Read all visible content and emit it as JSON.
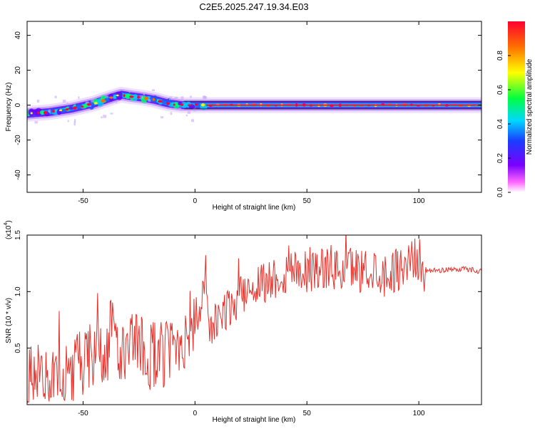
{
  "title": "C2E5.2025.247.19.34.E03",
  "spectrogram": {
    "type": "heatmap",
    "xlabel": "Height of straight line (km)",
    "ylabel": "Frequency (Hz)",
    "xlim": [
      -75,
      128
    ],
    "ylim": [
      -50,
      48
    ],
    "xticks": [
      -50,
      0,
      50,
      100
    ],
    "yticks": [
      40,
      20,
      0,
      -20,
      -40
    ],
    "ridge_x": [
      -75,
      -65,
      -55,
      -45,
      -38,
      -33,
      -28,
      -22,
      -18,
      -12,
      -6,
      0,
      10,
      128
    ],
    "ridge_y": [
      -5,
      -4,
      -2,
      1,
      4,
      6,
      5,
      4,
      3,
      1,
      0,
      0,
      0,
      0
    ],
    "colors": [
      "#6a00ff",
      "#2a4cff",
      "#00c8ff",
      "#00ff70",
      "#ffee00",
      "#ff6a00",
      "#ff0040"
    ]
  },
  "colorbar": {
    "label": "Normalized spectral amplitude",
    "ticks": [
      "0.0",
      "0.2",
      "0.4",
      "0.6",
      "0.8"
    ],
    "tick_values": [
      0.0,
      0.2,
      0.4,
      0.6,
      0.8
    ],
    "range": [
      0,
      1
    ]
  },
  "chart_data": {
    "type": "line",
    "title": "C2E5.2025.247.19.34.E03",
    "xlabel": "Height of straight line (km)",
    "ylabel": "SNR (10 * v/v)",
    "scale_label": "(x10",
    "scale_exp": "4",
    "xlim": [
      -75,
      128
    ],
    "ylim": [
      0,
      1.5
    ],
    "xticks": [
      -50,
      0,
      50,
      100
    ],
    "yticks": [
      "0.5",
      "1.0",
      "1.5"
    ],
    "ytick_values": [
      0.5,
      1.0,
      1.5
    ],
    "color": "#e8302a",
    "series": [
      {
        "name": "SNR",
        "x": [
          -75,
          -72,
          -68,
          -64,
          -60,
          -55,
          -50,
          -45,
          -40,
          -37,
          -35,
          -30,
          -25,
          -20,
          -15,
          -10,
          -5,
          0,
          3,
          5,
          6,
          10,
          15,
          20,
          25,
          30,
          35,
          40,
          45,
          50,
          55,
          60,
          65,
          70,
          75,
          80,
          85,
          90,
          95,
          98,
          100,
          102,
          105,
          110,
          115,
          120,
          125,
          128
        ],
        "y": [
          0.12,
          0.3,
          0.22,
          0.18,
          0.22,
          0.28,
          0.35,
          0.45,
          0.4,
          0.7,
          0.5,
          0.45,
          0.5,
          0.45,
          0.42,
          0.5,
          0.6,
          0.78,
          0.85,
          1.22,
          0.6,
          0.75,
          0.85,
          0.95,
          1.05,
          1.08,
          1.12,
          1.15,
          1.22,
          1.18,
          1.2,
          1.22,
          1.18,
          1.22,
          1.18,
          1.2,
          1.15,
          1.2,
          1.25,
          1.3,
          1.28,
          1.2,
          1.18,
          1.19,
          1.2,
          1.2,
          1.19,
          1.18
        ]
      }
    ]
  }
}
